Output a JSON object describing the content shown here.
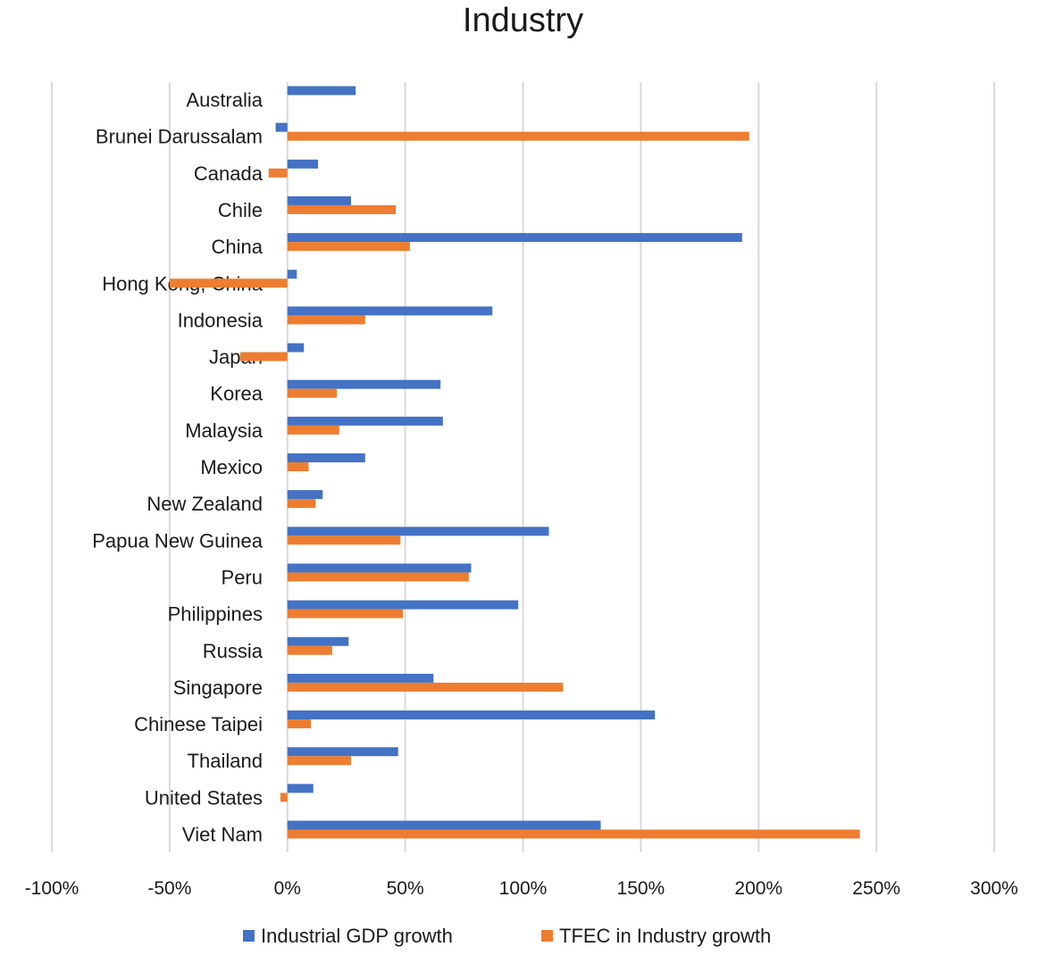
{
  "chart_data": {
    "type": "bar",
    "orientation": "horizontal",
    "title": "Industry",
    "categories": [
      "Australia",
      "Brunei Darussalam",
      "Canada",
      "Chile",
      "China",
      "Hong Kong, China",
      "Indonesia",
      "Japan",
      "Korea",
      "Malaysia",
      "Mexico",
      "New Zealand",
      "Papua New Guinea",
      "Peru",
      "Philippines",
      "Russia",
      "Singapore",
      "Chinese Taipei",
      "Thailand",
      "United States",
      "Viet Nam"
    ],
    "series": [
      {
        "name": "Industrial GDP growth",
        "color": "#4472C4",
        "values": [
          29,
          -5,
          13,
          27,
          193,
          4,
          87,
          7,
          65,
          66,
          33,
          15,
          111,
          78,
          98,
          26,
          62,
          156,
          47,
          11,
          133
        ]
      },
      {
        "name": "TFEC in Industry growth",
        "color": "#ED7D31",
        "values": [
          0,
          196,
          -8,
          46,
          52,
          -50,
          33,
          -20,
          21,
          22,
          9,
          12,
          48,
          77,
          49,
          19,
          117,
          10,
          27,
          -3,
          243
        ]
      }
    ],
    "x_ticks": [
      "-100%",
      "-50%",
      "0%",
      "50%",
      "100%",
      "150%",
      "200%",
      "250%",
      "300%"
    ],
    "xlim": [
      -100,
      300
    ],
    "unit": "%",
    "grid": true,
    "legend_position": "bottom"
  }
}
